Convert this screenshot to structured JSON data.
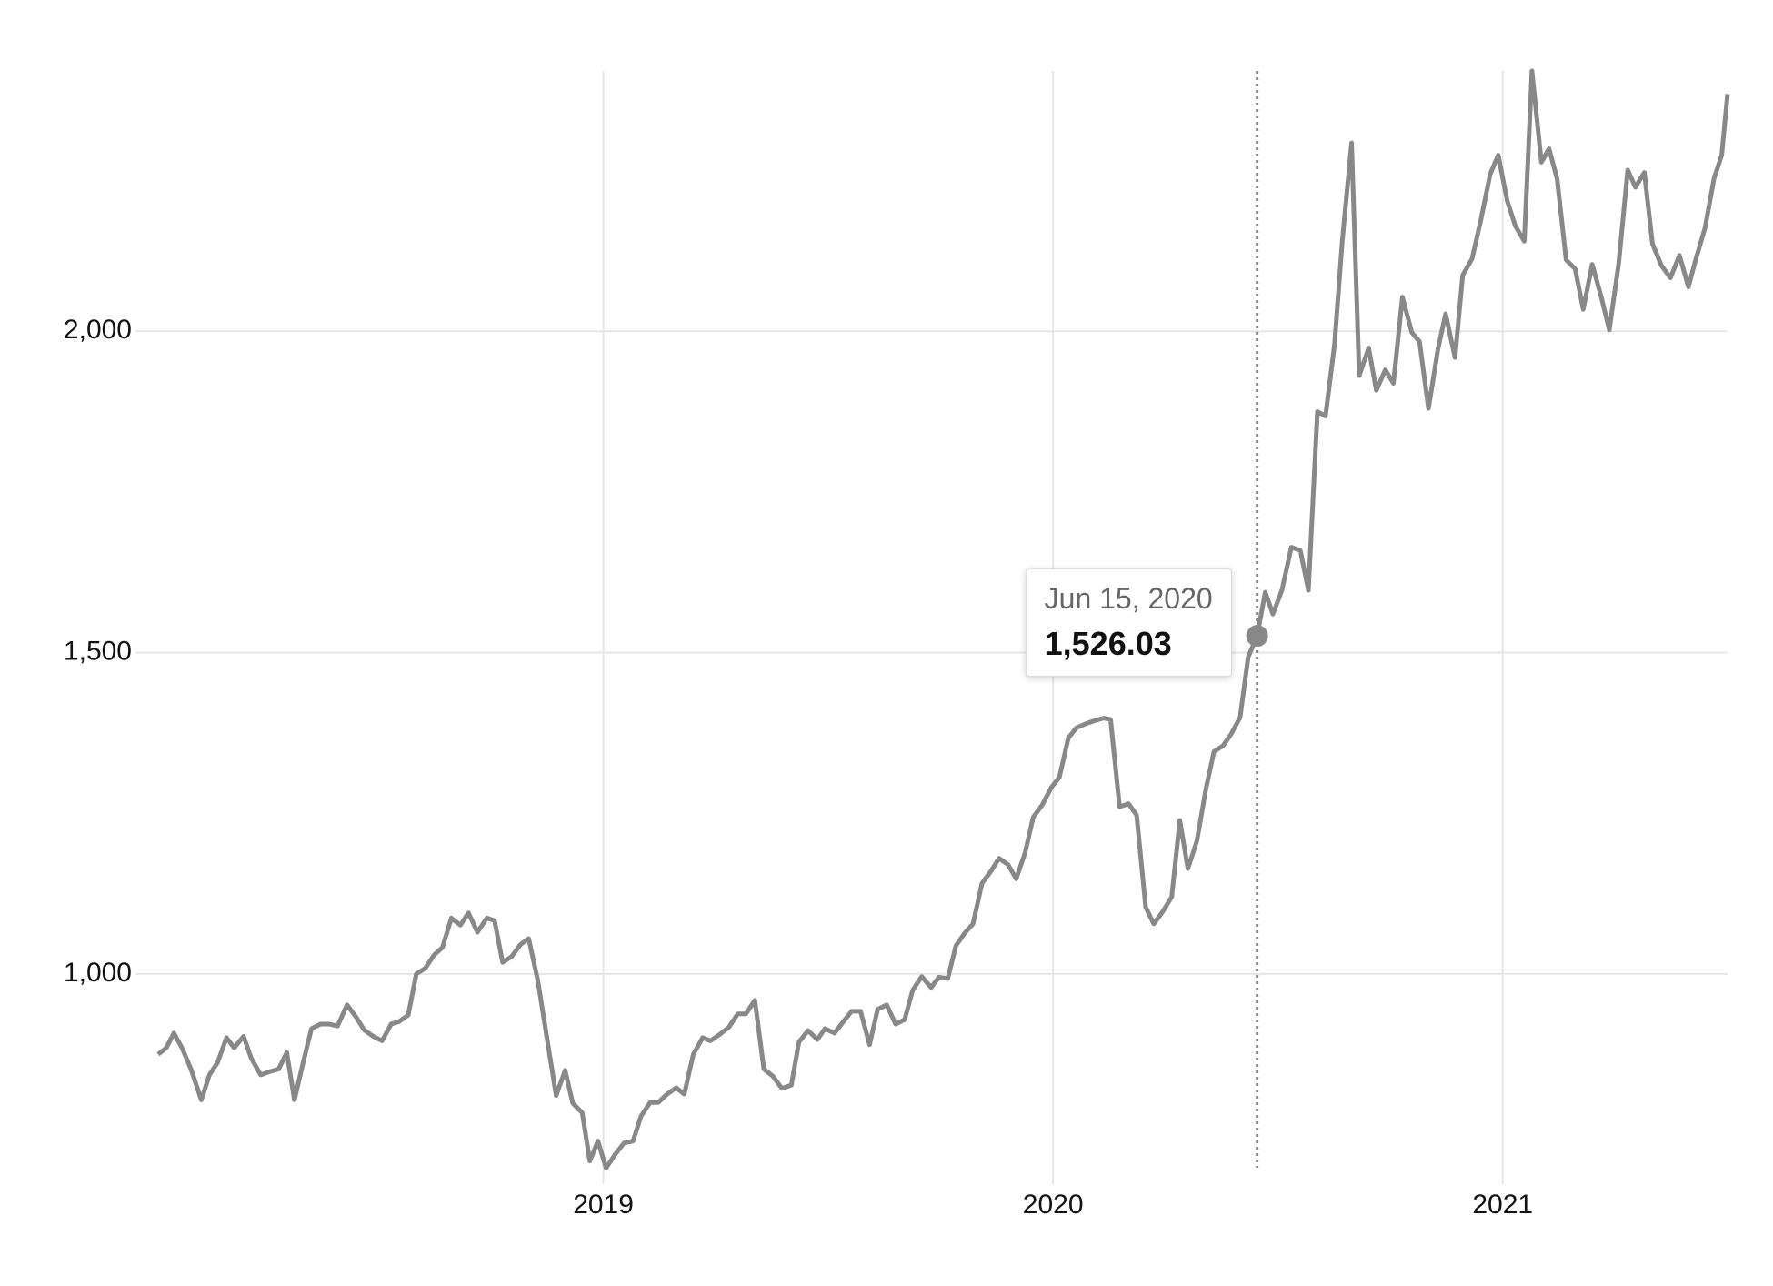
{
  "chart_data": {
    "type": "line",
    "color": "#888888",
    "grid": true,
    "x": [
      2018.01,
      2018.028,
      2018.045,
      2018.063,
      2018.083,
      2018.106,
      2018.124,
      2018.142,
      2018.162,
      2018.179,
      2018.2,
      2018.217,
      2018.238,
      2018.258,
      2018.278,
      2018.296,
      2018.313,
      2018.334,
      2018.351,
      2018.371,
      2018.391,
      2018.409,
      2018.43,
      2018.45,
      2018.468,
      2018.488,
      2018.508,
      2018.528,
      2018.546,
      2018.566,
      2018.584,
      2018.604,
      2018.624,
      2018.642,
      2018.662,
      2018.682,
      2018.7,
      2018.72,
      2018.741,
      2018.758,
      2018.776,
      2018.796,
      2018.816,
      2018.834,
      2018.854,
      2018.874,
      2018.895,
      2018.915,
      2018.932,
      2018.953,
      2018.97,
      2018.988,
      2019.006,
      2019.026,
      2019.046,
      2019.066,
      2019.084,
      2019.104,
      2019.122,
      2019.142,
      2019.162,
      2019.18,
      2019.2,
      2019.221,
      2019.238,
      2019.259,
      2019.279,
      2019.299,
      2019.317,
      2019.337,
      2019.357,
      2019.377,
      2019.397,
      2019.418,
      2019.435,
      2019.455,
      2019.476,
      2019.493,
      2019.514,
      2019.534,
      2019.552,
      2019.572,
      2019.592,
      2019.61,
      2019.63,
      2019.65,
      2019.67,
      2019.688,
      2019.708,
      2019.729,
      2019.746,
      2019.766,
      2019.784,
      2019.804,
      2019.822,
      2019.842,
      2019.863,
      2019.88,
      2019.9,
      2019.918,
      2019.938,
      2019.956,
      2019.976,
      2019.996,
      2020.014,
      2020.034,
      2020.052,
      2020.072,
      2020.092,
      2020.113,
      2020.128,
      2020.148,
      2020.168,
      2020.186,
      2020.206,
      2020.224,
      2020.244,
      2020.264,
      2020.282,
      2020.3,
      2020.32,
      2020.34,
      2020.358,
      2020.378,
      2020.396,
      2020.416,
      2020.434,
      2020.454,
      2020.472,
      2020.489,
      2020.509,
      2020.53,
      2020.55,
      2020.568,
      2020.588,
      2020.606,
      2020.626,
      2020.643,
      2020.664,
      2020.681,
      2020.702,
      2020.719,
      2020.739,
      2020.757,
      2020.777,
      2020.798,
      2020.815,
      2020.835,
      2020.856,
      2020.873,
      2020.894,
      2020.911,
      2020.932,
      2020.952,
      2020.972,
      2020.99,
      2021.01,
      2021.028,
      2021.048,
      2021.065,
      2021.086,
      2021.103,
      2021.121,
      2021.141,
      2021.161,
      2021.179,
      2021.199,
      2021.22,
      2021.237,
      2021.258,
      2021.278,
      2021.295,
      2021.315,
      2021.333,
      2021.353,
      2021.373,
      2021.393,
      2021.413,
      2021.429,
      2021.45,
      2021.47,
      2021.487,
      2021.5
    ],
    "values": [
      875,
      885,
      908,
      885,
      852,
      804,
      843,
      862,
      901,
      885,
      903,
      869,
      843,
      848,
      852,
      878,
      804,
      867,
      915,
      922,
      922,
      919,
      952,
      933,
      913,
      903,
      896,
      922,
      926,
      936,
      1000,
      1009,
      1030,
      1041,
      1087,
      1076,
      1095,
      1065,
      1087,
      1083,
      1018,
      1027,
      1046,
      1055,
      991,
      903,
      811,
      850,
      799,
      784,
      709,
      740,
      698,
      719,
      737,
      740,
      779,
      800,
      800,
      813,
      823,
      813,
      875,
      901,
      896,
      906,
      917,
      938,
      938,
      959,
      852,
      841,
      822,
      827,
      894,
      912,
      898,
      915,
      908,
      926,
      942,
      942,
      890,
      945,
      952,
      922,
      929,
      975,
      996,
      979,
      995,
      993,
      1044,
      1064,
      1078,
      1141,
      1161,
      1180,
      1170,
      1148,
      1189,
      1244,
      1263,
      1290,
      1306,
      1367,
      1383,
      1389,
      1394,
      1398,
      1396,
      1260,
      1265,
      1247,
      1104,
      1078,
      1097,
      1120,
      1239,
      1164,
      1207,
      1288,
      1346,
      1355,
      1373,
      1399,
      1493,
      1526.03,
      1594,
      1560,
      1597,
      1664,
      1659,
      1597,
      1875,
      1868,
      1979,
      2138,
      2293,
      1931,
      1974,
      1908,
      1940,
      1919,
      2053,
      1998,
      1984,
      1880,
      1972,
      2027,
      1959,
      2087,
      2113,
      2175,
      2244,
      2274,
      2203,
      2164,
      2140,
      2405,
      2263,
      2284,
      2237,
      2111,
      2097,
      2034,
      2104,
      2051,
      2002,
      2106,
      2251,
      2224,
      2247,
      2136,
      2102,
      2083,
      2118,
      2069,
      2111,
      2161,
      2238,
      2274,
      2369
    ],
    "xlim": [
      2018,
      2021.5
    ],
    "xticks": [
      2019,
      2020,
      2021
    ],
    "ylim": [
      673,
      2405
    ],
    "yticks": [
      {
        "value": 1000,
        "label": "1,000"
      },
      {
        "value": 1500,
        "label": "1,500"
      },
      {
        "value": 2000,
        "label": "2,000"
      }
    ],
    "tooltip": {
      "x": 2020.454,
      "value": 1526.03,
      "title": "Jun 15, 2020",
      "value_label": "1,526.03"
    }
  }
}
